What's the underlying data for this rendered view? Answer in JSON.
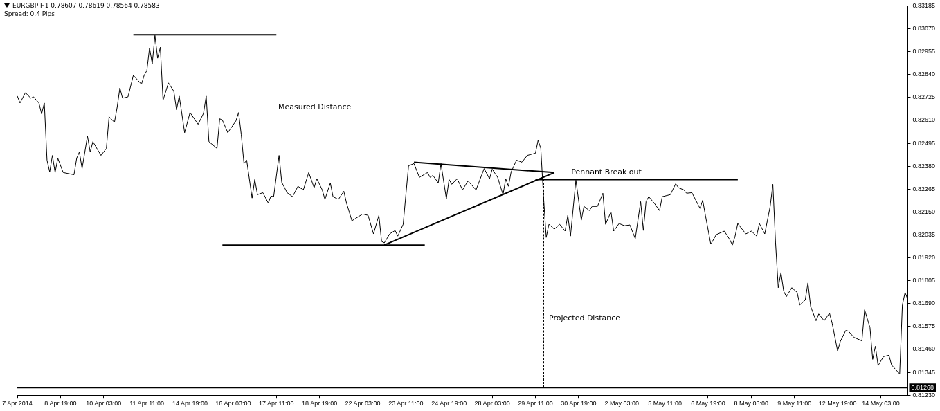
{
  "chart_data": {
    "type": "line",
    "title": "EURGBP,H1  0.78607 0.78619 0.78564 0.78583",
    "subtitle": "Spread: 0.4 Pips",
    "categories": [
      "7 Apr 2014",
      null,
      null,
      null,
      null,
      null,
      null,
      null,
      null,
      null,
      null,
      null,
      null,
      null,
      null,
      null,
      "8 Apr 19:00",
      null,
      null,
      null,
      null,
      null,
      null,
      null,
      null,
      null,
      null,
      null,
      null,
      null,
      null,
      null,
      "10 Apr 03:00",
      null,
      null,
      null,
      null,
      null,
      null,
      null,
      null,
      null,
      null,
      null,
      null,
      null,
      null,
      null,
      "11 Apr 11:00",
      null,
      null,
      null,
      null,
      null,
      null,
      null,
      null,
      null,
      null,
      null,
      null,
      null,
      null,
      null,
      "14 Apr 19:00",
      null,
      null,
      null,
      null,
      null,
      null,
      null,
      null,
      null,
      null,
      null,
      null,
      null,
      null,
      null,
      "16 Apr 03:00",
      null,
      null,
      null,
      null,
      null,
      null,
      null,
      null,
      null,
      null,
      null,
      null,
      null,
      null,
      null,
      "17 Apr 11:00",
      null,
      null,
      null,
      null,
      null,
      null,
      null,
      null,
      null,
      null,
      null,
      null,
      null,
      null,
      null,
      "18 Apr 19:00",
      null,
      null,
      null,
      null,
      null,
      null,
      null,
      null,
      null,
      null,
      null,
      null,
      null,
      null,
      null,
      "22 Apr 03:00",
      null,
      null,
      null,
      null,
      null,
      null,
      null,
      null,
      null,
      null,
      null,
      null,
      null,
      null,
      null,
      "23 Apr 11:00",
      null,
      null,
      null,
      null,
      null,
      null,
      null,
      null,
      null,
      null,
      null,
      null,
      null,
      null,
      null,
      "24 Apr 19:00",
      null,
      null,
      null,
      null,
      null,
      null,
      null,
      null,
      null,
      null,
      null,
      null,
      null,
      null,
      null,
      "28 Apr 03:00",
      null,
      null,
      null,
      null,
      null,
      null,
      null,
      null,
      null,
      null,
      null,
      null,
      null,
      null,
      null,
      "29 Apr 11:00",
      null,
      null,
      null,
      null,
      null,
      null,
      null,
      null,
      null,
      null,
      null,
      null,
      null,
      null,
      null,
      "30 Apr 19:00",
      null,
      null,
      null,
      null,
      null,
      null,
      null,
      null,
      null,
      null,
      null,
      null,
      null,
      null,
      null,
      "2 May 03:00",
      null,
      null,
      null,
      null,
      null,
      null,
      null,
      null,
      null,
      null,
      null,
      null,
      null,
      null,
      null,
      "5 May 11:00",
      null,
      null,
      null,
      null,
      null,
      null,
      null,
      null,
      null,
      null,
      null,
      null,
      null,
      null,
      null,
      "6 May 19:00",
      null,
      null,
      null,
      null,
      null,
      null,
      null,
      null,
      null,
      null,
      null,
      null,
      null,
      null,
      null,
      "8 May 03:00",
      null,
      null,
      null,
      null,
      null,
      null,
      null,
      null,
      null,
      null,
      null,
      null,
      null,
      null,
      null,
      "9 May 11:00",
      null,
      null,
      null,
      null,
      null,
      null,
      null,
      null,
      null,
      null,
      null,
      null,
      null,
      null,
      null,
      "12 May 19:00",
      null,
      null,
      null,
      null,
      null,
      null,
      null,
      null,
      null,
      null,
      null,
      null,
      null,
      null,
      null,
      "14 May 03:00",
      null,
      null,
      null,
      null,
      null,
      null,
      null,
      null,
      null,
      null
    ],
    "ylim": [
      0.8123,
      0.83185
    ],
    "yticks": [
      {
        "value": 0.8123,
        "label": "0.81230"
      },
      {
        "value": 0.81345,
        "label": "0.81345"
      },
      {
        "value": 0.8146,
        "label": "0.81460"
      },
      {
        "value": 0.81575,
        "label": "0.81575"
      },
      {
        "value": 0.8169,
        "label": "0.81690"
      },
      {
        "value": 0.81805,
        "label": "0.81805"
      },
      {
        "value": 0.8192,
        "label": "0.81920"
      },
      {
        "value": 0.82035,
        "label": "0.82035"
      },
      {
        "value": 0.8215,
        "label": "0.82150"
      },
      {
        "value": 0.82265,
        "label": "0.82265"
      },
      {
        "value": 0.8238,
        "label": "0.82380"
      },
      {
        "value": 0.82495,
        "label": "0.82495"
      },
      {
        "value": 0.8261,
        "label": "0.82610"
      },
      {
        "value": 0.82725,
        "label": "0.82725"
      },
      {
        "value": 0.8284,
        "label": "0.82840"
      },
      {
        "value": 0.82955,
        "label": "0.82955"
      },
      {
        "value": 0.8307,
        "label": "0.83070"
      },
      {
        "value": 0.83185,
        "label": "0.83185"
      }
    ],
    "grid": false,
    "legend": false,
    "marker": "none",
    "series": [
      {
        "color": "#000000",
        "values": [
          0.82732,
          0.82697,
          null,
          0.82749,
          null,
          0.82721,
          0.82728,
          null,
          0.82697,
          0.82642,
          0.82697,
          0.8241,
          0.82351,
          0.82434,
          0.82348,
          0.8242,
          null,
          0.82348,
          null,
          null,
          null,
          0.82337,
          0.8242,
          0.82451,
          0.82368,
          null,
          0.82531,
          0.82451,
          0.82503,
          null,
          null,
          0.82434,
          null,
          0.82469,
          0.82628,
          null,
          0.826,
          0.82676,
          0.82773,
          0.82721,
          null,
          0.82728,
          null,
          0.82836,
          null,
          null,
          0.82791,
          0.82836,
          0.8286,
          0.82974,
          0.82894,
          0.83036,
          0.82922,
          0.82977,
          0.82711,
          null,
          0.82798,
          null,
          0.82756,
          0.82663,
          0.82732,
          null,
          0.82548,
          null,
          0.82649,
          null,
          null,
          0.8259,
          null,
          0.82645,
          0.82732,
          0.82503,
          null,
          null,
          0.82469,
          0.82618,
          0.82611,
          null,
          0.82548,
          null,
          null,
          0.82607,
          0.82649,
          0.82538,
          0.82393,
          0.8241,
          null,
          0.8222,
          0.82313,
          0.82237,
          null,
          0.82247,
          null,
          0.82195,
          0.8223,
          0.82227,
          null,
          0.82434,
          0.82299,
          null,
          0.82247,
          null,
          0.82227,
          null,
          0.82279,
          null,
          0.82261,
          null,
          0.82348,
          null,
          0.82272,
          0.82317,
          null,
          0.82261,
          0.82213,
          null,
          0.82296,
          0.82227,
          null,
          0.82213,
          null,
          0.82254,
          0.82195,
          null,
          0.82106,
          null,
          null,
          null,
          0.8214,
          null,
          0.82133,
          null,
          0.8204,
          null,
          0.82133,
          0.82002,
          0.81995,
          null,
          0.8204,
          null,
          0.82057,
          0.82029,
          null,
          0.82088,
          0.82237,
          0.82382,
          null,
          0.82393,
          null,
          0.82324,
          null,
          null,
          0.82348,
          0.82324,
          0.82334,
          null,
          0.82296,
          0.82393,
          null,
          0.82216,
          0.82313,
          0.82289,
          null,
          0.82317,
          null,
          0.82261,
          null,
          0.82306,
          null,
          null,
          0.82261,
          null,
          null,
          0.82368,
          null,
          0.82317,
          0.82365,
          null,
          0.82324,
          null,
          0.82237,
          0.82317,
          0.82279,
          0.82351,
          null,
          0.8241,
          null,
          0.824,
          null,
          0.82434,
          null,
          null,
          0.82445,
          0.8251,
          0.82469,
          0.82227,
          0.82022,
          0.82088,
          null,
          0.82064,
          null,
          0.82088,
          null,
          0.82054,
          0.82133,
          0.82029,
          null,
          0.8231,
          null,
          0.82109,
          0.82178,
          null,
          0.82157,
          0.82178,
          null,
          0.82178,
          null,
          0.82244,
          0.82088,
          null,
          0.82151,
          0.82054,
          null,
          0.82092,
          null,
          0.82081,
          null,
          0.82085,
          null,
          0.82016,
          null,
          0.82202,
          0.82057,
          0.82202,
          0.82227,
          null,
          0.82195,
          null,
          0.82157,
          0.82227,
          null,
          null,
          0.82237,
          null,
          0.82292,
          0.82272,
          null,
          0.82261,
          0.82244,
          null,
          0.82247,
          null,
          null,
          0.82168,
          0.82209,
          0.82133,
          null,
          0.81988,
          null,
          0.82036,
          null,
          null,
          0.82054,
          null,
          0.82012,
          0.81984,
          0.82029,
          0.82092,
          0.82074,
          null,
          0.8204,
          null,
          0.82054,
          null,
          0.82029,
          0.82092,
          null,
          0.8204,
          null,
          0.82178,
          0.82289,
          0.81995,
          0.8177,
          0.81846,
          0.81753,
          0.81725,
          null,
          0.8177,
          null,
          0.81746,
          0.81683,
          null,
          0.81708,
          0.81794,
          0.81676,
          null,
          0.81604,
          0.81638,
          null,
          0.81604,
          null,
          0.81642,
          0.8159,
          null,
          0.81452,
          0.815,
          null,
          0.81555,
          0.81552,
          null,
          0.81521,
          null,
          null,
          0.81503,
          0.81659,
          null,
          0.81569,
          0.8141,
          0.81476,
          0.81379,
          null,
          0.81424,
          null,
          0.81431,
          0.81382,
          null,
          null,
          0.81337,
          0.81683,
          0.81746,
          0.81711
        ]
      },
      {
        "type": "line",
        "color": "#000000",
        "values": [
          null,
          null,
          null,
          null,
          null,
          null,
          null,
          null,
          null,
          null,
          null,
          null,
          null,
          null,
          null,
          null,
          null,
          null,
          null,
          null,
          null,
          null,
          null,
          null,
          null,
          null,
          null,
          null,
          null,
          null,
          null,
          null,
          null,
          null,
          null,
          null,
          null,
          null,
          null,
          null,
          null,
          null,
          null,
          0.8304,
          null,
          null,
          null,
          null,
          null,
          null,
          null,
          null,
          null,
          null,
          null,
          null,
          null,
          null,
          null,
          null,
          null,
          null,
          null,
          null,
          null,
          null,
          null,
          null,
          null,
          null,
          null,
          null,
          null,
          null,
          null,
          null,
          null,
          null,
          null,
          null,
          null,
          null,
          null,
          null,
          null,
          null,
          null,
          null,
          null,
          null,
          null,
          null,
          null,
          null,
          null,
          null,
          0.8304,
          null,
          null,
          null,
          null,
          null,
          null,
          null,
          null,
          null,
          null,
          null,
          null,
          null,
          null,
          null,
          null,
          null,
          null,
          null,
          null,
          null,
          null,
          null,
          null,
          null,
          null,
          null,
          null,
          null,
          null,
          null,
          null,
          null,
          null,
          null,
          null,
          null,
          null,
          null,
          null,
          null,
          null,
          null,
          null,
          null,
          null,
          null,
          null,
          null,
          null,
          null,
          null,
          null,
          null,
          null,
          null,
          null,
          null,
          null,
          null,
          null,
          null,
          null,
          null,
          null,
          null,
          null,
          null,
          null,
          null,
          null,
          null,
          null,
          null,
          null,
          null,
          null,
          null,
          null,
          null,
          null,
          null,
          null,
          null,
          null,
          null,
          null,
          null,
          null,
          null,
          null,
          null,
          null,
          null,
          null,
          null,
          null,
          null,
          null,
          null,
          null,
          null,
          null,
          null,
          null,
          null,
          null,
          null,
          null,
          null,
          null,
          null,
          null,
          null,
          null,
          null,
          null,
          null,
          null,
          null,
          null,
          null,
          null,
          null,
          null,
          null,
          null,
          null,
          null,
          null,
          null,
          null,
          null,
          null,
          null,
          null,
          null,
          null,
          null,
          null,
          null,
          null,
          null,
          null,
          null,
          null,
          null,
          null,
          null,
          null,
          null,
          null,
          null,
          null,
          null,
          null,
          null,
          null,
          null,
          null,
          null,
          null,
          null,
          null,
          null,
          null,
          null,
          null,
          null,
          null,
          null,
          null,
          null,
          null,
          null,
          null,
          null,
          null,
          null,
          null,
          null,
          null,
          null,
          null,
          null,
          null,
          null,
          null,
          null,
          null,
          null,
          null,
          null,
          null,
          null,
          null,
          null,
          null,
          null,
          null,
          null,
          null,
          null,
          null,
          null,
          null,
          null,
          null,
          null,
          null,
          null,
          null,
          null,
          null,
          null,
          null,
          null,
          null,
          null,
          null,
          null,
          null,
          null,
          null,
          null,
          null,
          null,
          null,
          null,
          null,
          null,
          null,
          null,
          null
        ]
      },
      {
        "type": "line",
        "color": "#000000",
        "values": [
          null,
          null,
          null,
          null,
          null,
          null,
          null,
          null,
          null,
          null,
          null,
          null,
          null,
          null,
          null,
          null,
          null,
          null,
          null,
          null,
          null,
          null,
          null,
          null,
          null,
          null,
          null,
          null,
          null,
          null,
          null,
          null,
          null,
          null,
          null,
          null,
          null,
          null,
          null,
          null,
          null,
          null,
          null,
          null,
          null,
          null,
          null,
          null,
          null,
          null,
          null,
          null,
          null,
          null,
          null,
          null,
          null,
          null,
          null,
          null,
          null,
          null,
          null,
          null,
          null,
          null,
          null,
          null,
          null,
          null,
          null,
          null,
          null,
          null,
          null,
          null,
          0.81984,
          null,
          null,
          null,
          null,
          null,
          null,
          null,
          null,
          null,
          null,
          null,
          null,
          null,
          null,
          null,
          null,
          null,
          null,
          null,
          null,
          null,
          null,
          null,
          null,
          null,
          null,
          null,
          null,
          null,
          null,
          null,
          null,
          null,
          null,
          null,
          null,
          null,
          null,
          null,
          null,
          null,
          null,
          null,
          null,
          null,
          null,
          null,
          null,
          null,
          null,
          null,
          null,
          null,
          null,
          null,
          null,
          null,
          null,
          null,
          null,
          null,
          null,
          null,
          null,
          null,
          null,
          null,
          null,
          null,
          null,
          null,
          null,
          null,
          null,
          0.81984,
          null,
          null,
          null,
          null,
          null,
          null,
          null,
          null,
          null,
          null,
          null,
          null,
          null,
          null,
          null,
          null,
          null,
          null,
          null,
          null,
          null,
          null,
          null,
          null,
          null,
          null,
          null,
          null,
          null,
          null,
          null,
          null,
          null,
          null,
          null,
          null,
          null,
          null,
          null,
          null,
          null,
          null,
          null,
          null,
          null,
          null,
          null,
          null,
          null,
          null,
          null,
          null,
          null,
          null,
          null,
          null,
          null,
          null,
          null,
          null,
          null,
          null,
          null,
          null,
          null,
          null,
          null,
          null,
          null,
          null,
          null,
          null,
          null,
          null,
          null,
          null,
          null,
          null,
          null,
          null,
          null,
          null,
          null,
          null,
          null,
          null,
          null,
          null,
          null,
          null,
          null,
          null,
          null,
          null,
          null,
          null,
          null,
          null,
          null,
          null,
          null,
          null,
          null,
          null,
          null,
          null,
          null,
          null,
          null,
          null,
          null,
          null,
          null,
          null,
          null,
          null,
          null,
          null,
          null,
          null,
          null,
          null,
          null,
          null,
          null,
          null,
          null,
          null,
          null,
          null,
          null,
          null,
          null,
          null,
          null,
          null,
          null,
          null,
          null,
          null,
          null,
          null,
          null,
          null,
          null,
          null,
          null,
          null,
          null,
          null,
          null,
          null,
          null,
          null,
          null,
          null,
          null,
          null,
          null,
          null,
          null,
          null,
          null,
          null,
          null,
          null,
          null,
          null,
          null,
          null,
          null,
          null,
          null,
          null,
          null,
          null,
          null,
          null,
          null
        ]
      },
      {
        "type": "line",
        "color": "#000000",
        "values": [
          null,
          null,
          null,
          null,
          null,
          null,
          null,
          null,
          null,
          null,
          null,
          null,
          null,
          null,
          null,
          null,
          null,
          null,
          null,
          null,
          null,
          null,
          null,
          null,
          null,
          null,
          null,
          null,
          null,
          null,
          null,
          null,
          null,
          null,
          null,
          null,
          null,
          null,
          null,
          null,
          null,
          null,
          null,
          null,
          null,
          null,
          null,
          null,
          null,
          null,
          null,
          null,
          null,
          null,
          null,
          null,
          null,
          null,
          null,
          null,
          null,
          null,
          null,
          null,
          null,
          null,
          null,
          null,
          null,
          null,
          null,
          null,
          null,
          null,
          null,
          null,
          null,
          null,
          null,
          null,
          null,
          null,
          null,
          null,
          null,
          null,
          null,
          null,
          null,
          null,
          null,
          null,
          null,
          null,
          null,
          null,
          null,
          null,
          null,
          null,
          null,
          null,
          null,
          null,
          null,
          null,
          null,
          null,
          null,
          null,
          null,
          null,
          null,
          null,
          null,
          null,
          null,
          null,
          null,
          null,
          null,
          null,
          null,
          null,
          null,
          null,
          null,
          null,
          null,
          null,
          null,
          null,
          null,
          null,
          null,
          null,
          null,
          null,
          null,
          null,
          null,
          null,
          null,
          null,
          null,
          null,
          null,
          0.824,
          null,
          null,
          null,
          null,
          null,
          null,
          null,
          null,
          null,
          null,
          null,
          null,
          null,
          null,
          null,
          null,
          null,
          null,
          null,
          null,
          null,
          null,
          null,
          null,
          null,
          null,
          null,
          null,
          null,
          null,
          null,
          null,
          null,
          null,
          null,
          null,
          null,
          null,
          null,
          null,
          null,
          null,
          null,
          null,
          null,
          null,
          null,
          null,
          null,
          null,
          null,
          0.82348,
          null,
          null,
          null,
          null,
          null,
          null,
          null,
          null,
          null,
          null,
          null,
          null,
          null,
          null,
          null,
          null,
          null,
          null,
          null,
          null,
          null,
          null,
          null,
          null,
          null,
          null,
          null,
          null,
          null,
          null,
          null,
          null,
          null,
          null,
          null,
          null,
          null,
          null,
          null,
          null,
          null,
          null,
          null,
          null,
          null,
          null,
          null,
          null,
          null,
          null,
          null,
          null,
          null,
          null,
          null,
          null,
          null,
          null,
          null,
          null,
          null,
          null,
          null,
          null,
          null,
          null,
          null,
          null,
          null,
          null,
          null,
          null,
          null,
          null,
          null,
          null,
          null,
          null,
          null,
          null,
          null,
          null,
          null,
          null,
          null,
          null,
          null,
          null,
          null,
          null,
          null,
          null,
          null,
          null,
          null,
          null,
          null,
          null,
          null,
          null,
          null,
          null,
          null,
          null,
          null,
          null,
          null,
          null,
          null,
          null,
          null,
          null,
          null,
          null,
          null,
          null,
          null,
          null,
          null,
          null,
          null,
          null,
          null,
          null,
          null,
          null,
          null,
          null,
          null,
          null,
          null
        ]
      },
      {
        "type": "line",
        "color": "#000000",
        "values": [
          null,
          null,
          null,
          null,
          null,
          null,
          null,
          null,
          null,
          null,
          null,
          null,
          null,
          null,
          null,
          null,
          null,
          null,
          null,
          null,
          null,
          null,
          null,
          null,
          null,
          null,
          null,
          null,
          null,
          null,
          null,
          null,
          null,
          null,
          null,
          null,
          null,
          null,
          null,
          null,
          null,
          null,
          null,
          null,
          null,
          null,
          null,
          null,
          null,
          null,
          null,
          null,
          null,
          null,
          null,
          null,
          null,
          null,
          null,
          null,
          null,
          null,
          null,
          null,
          null,
          null,
          null,
          null,
          null,
          null,
          null,
          null,
          null,
          null,
          null,
          null,
          null,
          null,
          null,
          null,
          null,
          null,
          null,
          null,
          null,
          null,
          null,
          null,
          null,
          null,
          null,
          null,
          null,
          null,
          null,
          null,
          null,
          null,
          null,
          null,
          null,
          null,
          null,
          null,
          null,
          null,
          null,
          null,
          null,
          null,
          null,
          null,
          null,
          null,
          null,
          null,
          null,
          null,
          null,
          null,
          null,
          null,
          null,
          null,
          null,
          null,
          null,
          null,
          null,
          null,
          null,
          null,
          null,
          null,
          null,
          null,
          0.81984,
          null,
          null,
          null,
          null,
          null,
          null,
          null,
          null,
          null,
          null,
          null,
          null,
          null,
          null,
          null,
          null,
          null,
          null,
          null,
          null,
          null,
          null,
          null,
          null,
          null,
          null,
          null,
          null,
          null,
          null,
          null,
          null,
          null,
          null,
          null,
          null,
          null,
          null,
          null,
          null,
          null,
          null,
          null,
          null,
          null,
          null,
          null,
          null,
          null,
          null,
          null,
          null,
          null,
          null,
          null,
          null,
          null,
          null,
          null,
          null,
          null,
          null,
          0.82348,
          null,
          null,
          null,
          null,
          null,
          null,
          null,
          null,
          null,
          null,
          null,
          null,
          null,
          null,
          null,
          null,
          null,
          null,
          null,
          null,
          null,
          null,
          null,
          null,
          null,
          null,
          null,
          null,
          null,
          null,
          null,
          null,
          null,
          null,
          null,
          null,
          null,
          null,
          null,
          null,
          null,
          null,
          null,
          null,
          null,
          null,
          null,
          null,
          null,
          null,
          null,
          null,
          null,
          null,
          null,
          null,
          null,
          null,
          null,
          null,
          null,
          null,
          null,
          null,
          null,
          null,
          null,
          null,
          null,
          null,
          null,
          null,
          null,
          null,
          null,
          null,
          null,
          null,
          null,
          null,
          null,
          null,
          null,
          null,
          null,
          null,
          null,
          null,
          null,
          null,
          null,
          null,
          null,
          null,
          null,
          null,
          null,
          null,
          null,
          null,
          null,
          null,
          null,
          null,
          null,
          null,
          null,
          null,
          null,
          null,
          null,
          null,
          null,
          null,
          null,
          null,
          null,
          null,
          null,
          null,
          null,
          null,
          null,
          null,
          null,
          null,
          null,
          null,
          null,
          null,
          null
        ]
      },
      {
        "type": "line",
        "color": "#000000",
        "values": [
          null,
          null,
          null,
          null,
          null,
          null,
          null,
          null,
          null,
          null,
          null,
          null,
          null,
          null,
          null,
          null,
          null,
          null,
          null,
          null,
          null,
          null,
          null,
          null,
          null,
          null,
          null,
          null,
          null,
          null,
          null,
          null,
          null,
          null,
          null,
          null,
          null,
          null,
          null,
          null,
          null,
          null,
          null,
          null,
          null,
          null,
          null,
          null,
          null,
          null,
          null,
          null,
          null,
          null,
          null,
          null,
          null,
          null,
          null,
          null,
          null,
          null,
          null,
          null,
          null,
          null,
          null,
          null,
          null,
          null,
          null,
          null,
          null,
          null,
          null,
          null,
          null,
          null,
          null,
          null,
          null,
          null,
          null,
          null,
          null,
          null,
          null,
          null,
          null,
          null,
          null,
          null,
          null,
          null,
          null,
          null,
          null,
          null,
          null,
          null,
          null,
          null,
          null,
          null,
          null,
          null,
          null,
          null,
          null,
          null,
          null,
          null,
          null,
          null,
          null,
          null,
          null,
          null,
          null,
          null,
          null,
          null,
          null,
          null,
          null,
          null,
          null,
          null,
          null,
          null,
          null,
          null,
          null,
          null,
          null,
          null,
          null,
          null,
          null,
          null,
          null,
          null,
          null,
          null,
          null,
          null,
          null,
          null,
          null,
          null,
          null,
          null,
          null,
          null,
          null,
          null,
          null,
          null,
          null,
          null,
          null,
          null,
          null,
          null,
          null,
          null,
          null,
          null,
          null,
          null,
          null,
          null,
          null,
          null,
          null,
          null,
          null,
          null,
          null,
          null,
          null,
          null,
          null,
          null,
          null,
          null,
          null,
          null,
          null,
          null,
          null,
          null,
          0.82313,
          null,
          null,
          null,
          null,
          null,
          null,
          null,
          null,
          null,
          null,
          null,
          null,
          null,
          null,
          null,
          null,
          null,
          null,
          null,
          null,
          null,
          null,
          null,
          null,
          null,
          null,
          null,
          null,
          null,
          null,
          null,
          null,
          null,
          null,
          null,
          null,
          null,
          null,
          null,
          null,
          null,
          null,
          null,
          null,
          null,
          null,
          null,
          null,
          null,
          null,
          null,
          null,
          null,
          null,
          null,
          null,
          null,
          null,
          null,
          null,
          null,
          null,
          null,
          null,
          null,
          null,
          null,
          null,
          null,
          null,
          null,
          null,
          null,
          null,
          0.82313,
          null,
          null,
          null,
          null,
          null,
          null,
          null,
          null,
          null,
          null,
          null,
          null,
          null,
          null,
          null,
          null,
          null,
          null,
          null,
          null,
          null,
          null,
          null,
          null,
          null,
          null,
          null,
          null,
          null,
          null,
          null,
          null,
          null,
          null,
          null,
          null,
          null,
          null,
          null,
          null,
          null,
          null,
          null,
          null,
          null,
          null,
          null,
          null,
          null,
          null,
          null,
          null,
          null,
          null,
          null,
          null,
          null,
          null,
          null,
          null,
          null,
          null,
          null
        ]
      }
    ],
    "ref_lines": [
      {
        "axis": "y",
        "value": 0.81268,
        "label": "0.81268",
        "color": "#000000"
      }
    ],
    "annotations": [
      "Measured Distance",
      "Pennant Break out",
      "Projected Distance"
    ]
  }
}
